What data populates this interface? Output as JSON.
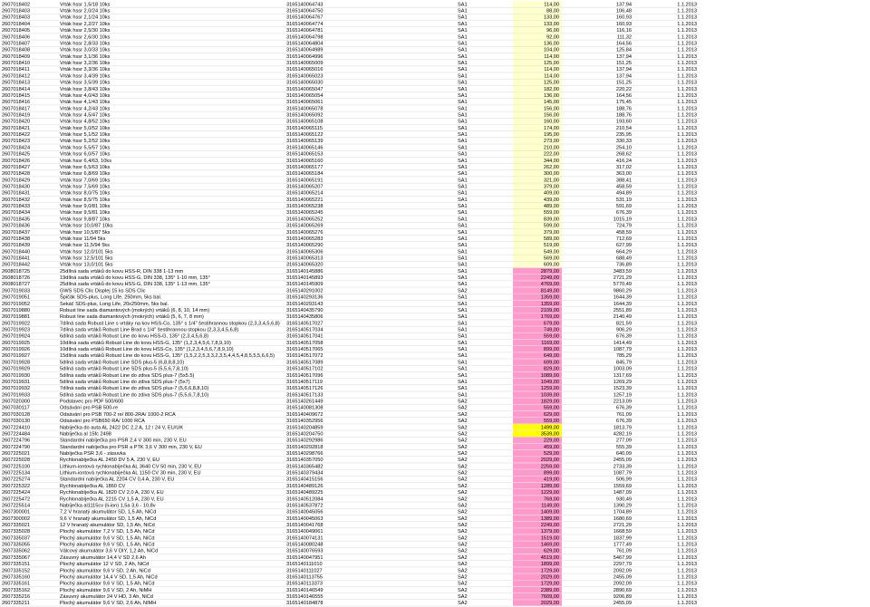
{
  "table": {
    "rows": [
      [
        "2607018402",
        "Vrták hssr 1,5/18 10ks",
        "3165140064743",
        "SA1",
        "114,00",
        "137,94",
        "1.1.2013"
      ],
      [
        "2607018403",
        "Vrták hssr 2,0/24 10ks",
        "3165140064750",
        "SA1",
        "88,00",
        "106,48",
        "1.1.2013"
      ],
      [
        "2607018403",
        "Vrták hssr 2,1/24 10ks",
        "3165140064767",
        "SA1",
        "133,00",
        "160,93",
        "1.1.2013"
      ],
      [
        "2607018404",
        "Vrták hssr 2,2/27 10ks",
        "3165140064774",
        "SA1",
        "133,00",
        "160,93",
        "1.1.2013"
      ],
      [
        "2607018405",
        "Vrták hssr 2,5/30 10ks",
        "3165140064781",
        "SA1",
        "96,00",
        "116,16",
        "1.1.2013"
      ],
      [
        "2607018406",
        "Vrták hssr 2,6/30 10ks",
        "3165140064798",
        "SA1",
        "92,00",
        "111,32",
        "1.1.2013"
      ],
      [
        "2607018407",
        "Vrták hssr 2,8/33 10ks",
        "3165140064804",
        "SA1",
        "136,00",
        "164,56",
        "1.1.2013"
      ],
      [
        "2607018408",
        "Vrták hssr 3,0/33 10ks",
        "3165140064989",
        "SA1",
        "104,00",
        "125,84",
        "1.1.2013"
      ],
      [
        "2607018409",
        "Vrták hssr 3,1/36 10ks",
        "3165140064996",
        "SA1",
        "114,00",
        "137,94",
        "1.1.2013"
      ],
      [
        "2607018410",
        "Vrták hssr 3,2/36 10ks",
        "3165140065009",
        "SA1",
        "125,00",
        "151,25",
        "1.1.2013"
      ],
      [
        "2607018411",
        "Vrták hssr 3,3/36 10ks",
        "3165140065016",
        "SA1",
        "114,00",
        "137,94",
        "1.1.2013"
      ],
      [
        "2607018412",
        "Vrták hssr 3,4/39 10ks",
        "3165140065023",
        "SA1",
        "114,00",
        "137,94",
        "1.1.2013"
      ],
      [
        "2607018413",
        "Vrták hssr 3,5/39 10ks",
        "3165140065030",
        "SA1",
        "125,00",
        "151,25",
        "1.1.2013"
      ],
      [
        "2607018414",
        "Vrták hssr 3,8/43 10ks",
        "3165140065047",
        "SA1",
        "182,00",
        "220,22",
        "1.1.2013"
      ],
      [
        "2607018415",
        "Vrták hssr 4,0/43 10ks",
        "3165140065054",
        "SA1",
        "136,00",
        "164,56",
        "1.1.2013"
      ],
      [
        "2607018416",
        "Vrták hssr 4,1/43 10ks",
        "3165140065061",
        "SA1",
        "145,00",
        "175,45",
        "1.1.2013"
      ],
      [
        "2607018417",
        "Vrták hssr 4,2/43 10ks",
        "3165140065078",
        "SA1",
        "156,00",
        "188,76",
        "1.1.2013"
      ],
      [
        "2607018419",
        "Vrták hssr 4,5/47 10ks",
        "3165140065092",
        "SA1",
        "156,00",
        "188,76",
        "1.1.2013"
      ],
      [
        "2607018420",
        "Vrták hssr 4,8/52 10ks",
        "3165140065108",
        "SA1",
        "160,00",
        "193,60",
        "1.1.2013"
      ],
      [
        "2607018421",
        "Vrták hssr 5,0/52 10ks",
        "3165140065115",
        "SA1",
        "174,00",
        "210,54",
        "1.1.2013"
      ],
      [
        "2607018422",
        "Vrták hssr 5,1/52 10ks",
        "3165140065122",
        "SA1",
        "195,00",
        "235,95",
        "1.1.2013"
      ],
      [
        "2607018423",
        "Vrták hssr 5,2/52 10ks",
        "3165140065139",
        "SA1",
        "273,00",
        "330,33",
        "1.1.2013"
      ],
      [
        "2607018424",
        "Vrták hssr 5,5/57 10ks",
        "3165140065146",
        "SA1",
        "210,00",
        "254,10",
        "1.1.2013"
      ],
      [
        "2607018425",
        "Vrták hssr 6,0/57 10ks",
        "3165140065153",
        "SA1",
        "222,00",
        "268,62",
        "1.1.2013"
      ],
      [
        "2607018426",
        "Vrták hssr 6,4/63, 10ks",
        "3165140065160",
        "SA1",
        "344,00",
        "416,24",
        "1.1.2013"
      ],
      [
        "2607018427",
        "Vrták hssr 6,5/63 10ks",
        "3165140065177",
        "SA1",
        "262,00",
        "317,02",
        "1.1.2013"
      ],
      [
        "2607018428",
        "Vrták hssr 6,8/69 10ks",
        "3165140065184",
        "SA1",
        "300,00",
        "363,00",
        "1.1.2013"
      ],
      [
        "2607018429",
        "Vrták hssr 7,0/69 10ks",
        "3165140065191",
        "SA1",
        "321,00",
        "388,41",
        "1.1.2013"
      ],
      [
        "2607018430",
        "Vrták hssr 7,5/69 10ks",
        "3165140065207",
        "SA1",
        "379,00",
        "458,59",
        "1.1.2013"
      ],
      [
        "2607018431",
        "Vrták hssr 8,0/75 10ks",
        "3165140065214",
        "SA1",
        "409,00",
        "494,89",
        "1.1.2013"
      ],
      [
        "2607018432",
        "Vrták hssr 8,5/75 10ks",
        "3165140065221",
        "SA1",
        "439,00",
        "531,19",
        "1.1.2013"
      ],
      [
        "2607018433",
        "Vrták hssr 9,0/81 10ks",
        "3165140065238",
        "SA1",
        "489,00",
        "591,69",
        "1.1.2013"
      ],
      [
        "2607018434",
        "Vrták hssr 9,5/81 10ks",
        "3165140065245",
        "SA1",
        "559,00",
        "676,39",
        "1.1.2013"
      ],
      [
        "2607018435",
        "Vrták hssr 9,8/87 10ks",
        "3165140065252",
        "SA1",
        "839,00",
        "1015,19",
        "1.1.2013"
      ],
      [
        "2607018436",
        "Vrták hssr 10,0/87 10ks",
        "3165140065269",
        "SA1",
        "599,00",
        "724,79",
        "1.1.2013"
      ],
      [
        "2607018437",
        "Vrták hssr 10,5/87 5ks",
        "3165140065276",
        "SA1",
        "379,00",
        "458,59",
        "1.1.2013"
      ],
      [
        "2607018438",
        "Vrták hssr 11/94 5ks",
        "3165140065283",
        "SA1",
        "589,00",
        "712,69",
        "1.1.2013"
      ],
      [
        "2607018439",
        "Vrták hssr 11,5/94 5ks",
        "3165140065290",
        "SA1",
        "519,00",
        "627,99",
        "1.1.2013"
      ],
      [
        "2607018440",
        "Vrták hssr 12,0/101 5ks",
        "3165140065306",
        "SA1",
        "549,00",
        "664,29",
        "1.1.2013"
      ],
      [
        "2607018441",
        "Vrták hssr 12,5/101 5ks",
        "3165140065313",
        "SA1",
        "569,00",
        "688,49",
        "1.1.2013"
      ],
      [
        "2607018442",
        "Vrták hssr 13,0/101 5ks",
        "3165140065320",
        "SA1",
        "609,00",
        "736,89",
        "1.1.2013"
      ],
      [
        "2608018725",
        "25dílná sada vrtáků do kovu HSS-R, DIN 338 1-13 mm",
        "3165140145886",
        "SA1",
        "2879,00",
        "3483,59",
        "1.1.2013"
      ],
      [
        "2608018726",
        "19dílná sada vrtáků do kovu HSS-G, DIN 338, 135° 1-10 mm, 135°",
        "3165140145893",
        "SA1",
        "2249,00",
        "2721,29",
        "1.1.2013"
      ],
      [
        "2608018727",
        "25dílná sada vrtáků do kovu HSS-G, DIN 338, 135° 1-13 mm, 135°",
        "3165140145909",
        "SA1",
        "4769,00",
        "5770,49",
        "1.1.2013"
      ],
      [
        "2607019033",
        "GWS SDS Clic Displej 15 ks SDS Clic",
        "3165140291002",
        "SA2",
        "8149,00",
        "9860,29",
        "1.1.2013"
      ],
      [
        "2607019051",
        "Špičák SDS-plus, Long Life, 250mm, 5ks bal.",
        "3165140293136",
        "SA1",
        "1359,00",
        "1644,39",
        "1.1.2013"
      ],
      [
        "2607019052",
        "Sekáč SDS-plus, Long Life, 20x250mm, 5ks bal.",
        "3165140293143",
        "SA1",
        "1359,00",
        "1644,39",
        "1.1.2013"
      ],
      [
        "2607019880",
        "Robust line sada diamantových (mokrých) vrtáků (6, 8, 10, 14 mm)",
        "3165140435790",
        "SA1",
        "2109,00",
        "2551,89",
        "1.1.2013"
      ],
      [
        "2607019881",
        "Robust line sada diamantových (mokrých) vrtáků (5, 6, 7, 8 mm)",
        "3165140435806",
        "SA1",
        "1769,00",
        "2140,49",
        "1.1.2013"
      ],
      [
        "2607019922",
        "7dílná sada Robust Line s vrtáky na kov HSS-Co, 135° s 1/4\" šestihrannou stopkou (2,3,3,4,5,6,8)",
        "3165140517027",
        "SA1",
        "679,00",
        "821,59",
        "1.1.2013"
      ],
      [
        "2607019923",
        "7dílná sada vrtáků Robust Line Brad s 1/4\" šestihrannou stopkou (2,3,3,4,5,6,8)",
        "3165140517034",
        "SA1",
        "749,00",
        "906,29",
        "1.1.2013"
      ],
      [
        "2607019924",
        "6dílná sada vrtáků Robust Line do kovu HSS-G, 135° (2,3,4,5,6,8)",
        "3165140517041",
        "SA1",
        "559,00",
        "676,39",
        "1.1.2013"
      ],
      [
        "2607019925",
        "10dílná sada vrtáků Robust Line do kovu HSS-G, 135° (1,2,3,4,5,6,7,8,9,10)",
        "3165140517058",
        "SA1",
        "1169,00",
        "1414,49",
        "1.1.2013"
      ],
      [
        "2607019926",
        "10dílná sada vrtáků Robust Line do kovu HSS-Co, 135° (1,2,3,4,5,6,7,8,9,10)",
        "3165140517065",
        "SA1",
        "899,00",
        "1087,79",
        "1.1.2013"
      ],
      [
        "2607019927",
        "15dílná sada vrtáků Robust Line do kovu HSS-G, 135° (1,5,2,2,5,3,3,2,3,5,4,4,5,4,8,5,5,5,6,6,5)",
        "3165140517072",
        "SA1",
        "649,00",
        "785,29",
        "1.1.2013"
      ],
      [
        "2607019928",
        "5dílná sada vrtáků Robust Line SDS plus-5 (6,8,8,8,10)",
        "3165140517089",
        "SA1",
        "699,00",
        "845,79",
        "1.1.2013"
      ],
      [
        "2607019929",
        "5dílná sada vrtáků Robust Line SDS plus-5 (5,5,6,7,8,10)",
        "3165140517102",
        "SA1",
        "829,00",
        "1003,09",
        "1.1.2013"
      ],
      [
        "2607019930",
        "5dílná sada vrtáků Robust Line do zdiva SDS plus-7 (5x5.5)",
        "3165140517096",
        "SA1",
        "1089,00",
        "1317,69",
        "1.1.2013"
      ],
      [
        "2607019931",
        "5dílná sada vrtáků Robust Line do zdiva SDS plus-7 (5x7)",
        "3165140517119",
        "SA1",
        "1049,00",
        "1269,29",
        "1.1.2013"
      ],
      [
        "2607019932",
        "7dílná sada vrtáků Robust Line do zdiva SDS plus-7 (5,6,6,8,8,10)",
        "3165140517126",
        "SA1",
        "1259,00",
        "1523,39",
        "1.1.2013"
      ],
      [
        "2607019933",
        "5dílná sada vrtáků Robust Line do zdiva SDS plus-7 (5,5,6,7,8,10)",
        "3165140517133",
        "SA1",
        "1039,00",
        "1257,19",
        "1.1.2013"
      ],
      [
        "2607020300",
        "Podstavec pro PDF 500/600",
        "3165140261449",
        "SA2",
        "1829,00",
        "2213,09",
        "1.1.2013"
      ],
      [
        "2607030117",
        "Odsávání pro PSB 500-re",
        "3165140081308",
        "SA2",
        "559,00",
        "676,39",
        "1.1.2013"
      ],
      [
        "2607030128",
        "Odsávání pro PSB 700-2 re/ 800-2RA/ 1000-2 RCA",
        "3165140409672",
        "SA2",
        "629,00",
        "761,09",
        "1.1.2013"
      ],
      [
        "2607030130",
        "Odsávání pro PSB650 RA/ 1000 RCA",
        "3165140352956",
        "SA2",
        "559,00",
        "676,39",
        "1.1.2013"
      ],
      [
        "2607224410",
        "Nabíječka do auta AL 2422 DC 2,2 A, 12 / 24 V, EU/UK",
        "3165140204859",
        "SA2",
        "1499,00",
        "1813,79",
        "1.1.2013"
      ],
      [
        "2607224484",
        "Nabíječka al 15fc 2498",
        "3165140204750",
        "SA2",
        "3539,00",
        "4282,19",
        "1.1.2013"
      ],
      [
        "2607224796",
        "Standardní nabíječka pro PSR 2,4 V 300 min, 230 V, EU",
        "3165140292986",
        "SA2",
        "229,00",
        "277,09",
        "1.1.2013"
      ],
      [
        "2607224790",
        "Standardní nabíječka pro PSR a PTK 3,6 V 300 min, 230 V, EU",
        "3165140292818",
        "SA2",
        "459,00",
        "555,39",
        "1.1.2013"
      ],
      [
        "2607225021",
        "Nabíječka PSR 3,6 - zásuvka",
        "3165140298766",
        "SA2",
        "529,00",
        "640,09",
        "1.1.2013"
      ],
      [
        "2607225028",
        "Rychlonabíječka AL 2450 DV 5 A, 230 V, EU",
        "3165140357050",
        "SA2",
        "2029,00",
        "2455,09",
        "1.1.2013"
      ],
      [
        "2607225100",
        "Lithium-iontová rychlonabíječka AL 3640 CV 50 min, 230 V, EU",
        "3165140365482",
        "SA2",
        "2259,00",
        "2733,39",
        "1.1.2013"
      ],
      [
        "2607225134",
        "Lithium-iontová rychlonabíječka AL 1150 CV 30 min, 230 V, EU",
        "3165140379434",
        "SA2",
        "899,00",
        "1087,79",
        "1.1.2013"
      ],
      [
        "2607225274",
        "Standardní nabíječka AL 2204 CV 0,4 A, 230 V, EU",
        "3165140415156",
        "SA2",
        "419,00",
        "506,99",
        "1.1.2013"
      ],
      [
        "2607225322",
        "Rychlonabíječka AL 1860 CV",
        "3165140489126",
        "SA2",
        "1289,00",
        "1559,69",
        "1.1.2013"
      ],
      [
        "2607225424",
        "Rychlonabíječka AL 1820 CV 2,0 A, 230 V, EU",
        "3165140489225",
        "SA2",
        "1229,00",
        "1487,09",
        "1.1.2013"
      ],
      [
        "2607225472",
        "Rychlonabíječka AL 2215 CV 1,5 A, 230 V, EU",
        "3165140512084",
        "SA2",
        "769,00",
        "930,49",
        "1.1.2013"
      ],
      [
        "2607225514",
        "Nabíječka al1115cv (li-ion) 1,5a 3,6 - 10,8v",
        "3165140537872",
        "SA2",
        "1149,00",
        "1390,29",
        "1.1.2013"
      ],
      [
        "2607300001",
        "7,2 V hranatý akumulátor SD, 1,5 Ah, NiCd",
        "3165140045056",
        "SA2",
        "1409,00",
        "1704,89",
        "1.1.2013"
      ],
      [
        "2607300002",
        "9,6 V hranatý akumulátor SD, 1,5 Ah, NiCd",
        "3165140045063",
        "SA2",
        "1389,00",
        "1680,69",
        "1.1.2013"
      ],
      [
        "2607335021",
        "12 V hranatý akumulátor SD, 1,5 Ah, NiCd",
        "3165140041768",
        "SA2",
        "2249,00",
        "2721,29",
        "1.1.2013"
      ],
      [
        "2607335028",
        "Plochý akumulátor 7,2 V SD, 1,5 Ah, NiCd",
        "3165140049061",
        "SA2",
        "1379,00",
        "1668,59",
        "1.1.2013"
      ],
      [
        "2607335037",
        "Plochý akumulátor 9,6 V SD, 1,5 Ah, NiCd",
        "3165140074131",
        "SA2",
        "1519,00",
        "1837,99",
        "1.1.2013"
      ],
      [
        "2607335055",
        "Plochý akumulátor 9,6 V SD, 1,5 Ah, NiCd",
        "3165140080248",
        "SA2",
        "1469,00",
        "1777,49",
        "1.1.2013"
      ],
      [
        "2607335062",
        "Válcový akumulátor 3,6 V DIY, 1,2 Ah, NiCd",
        "3165140076593",
        "SA2",
        "629,00",
        "761,09",
        "1.1.2013"
      ],
      [
        "2607335067",
        "Zásuvný akumulátor 14,4 V SD 2,6 Ah",
        "3165140047951",
        "SA2",
        "4519,00",
        "5467,99",
        "1.1.2013"
      ],
      [
        "2607335151",
        "Plochý akumulátor 12 V SD, 2 Ah, NiCd",
        "3165140111010",
        "SA2",
        "1899,00",
        "2297,79",
        "1.1.2013"
      ],
      [
        "2607335152",
        "Plochý akumulátor 9,6 V SD, 2 Ah, NiCd",
        "3165140111027",
        "SA2",
        "1729,00",
        "2092,09",
        "1.1.2013"
      ],
      [
        "2607335160",
        "Plochý akumulátor 14,4 V SD, 1,5 Ah, NiCd",
        "3165140113755",
        "SA2",
        "2029,00",
        "2455,09",
        "1.1.2013"
      ],
      [
        "2607335161",
        "Plochý akumulátor 9,6 V SD, 1,5 Ah, NiCd",
        "3165140113373",
        "SA2",
        "1729,00",
        "2092,09",
        "1.1.2013"
      ],
      [
        "2607335162",
        "Plochý akumulátor 9,6 V SD, 2 Ah, NiMH",
        "3165140146549",
        "SA2",
        "2389,00",
        "2890,69",
        "1.1.2013"
      ],
      [
        "2607335216",
        "Zásuvný akumulátor 24 V HD, 3 Ah, NiCd",
        "3165140146555",
        "SA2",
        "7609,00",
        "9206,89",
        "1.1.2013"
      ],
      [
        "2607335211",
        "Plochý akumulátor 9,6 V SD, 2,6 Ah, NIMH",
        "3165140184878",
        "SA2",
        "2029,00",
        "2455,09",
        "1.1.2013"
      ]
    ],
    "price_highlight": [
      "#ffffcc",
      "#ffffcc",
      "#ffffcc",
      "#ffffcc",
      "#ffffcc",
      "#ffffcc",
      "#ffffcc",
      "#ffffcc",
      "#ffffcc",
      "#ffffcc",
      "#ffffcc",
      "#ffffcc",
      "#ffffcc",
      "#ffffcc",
      "#ffffcc",
      "#ffffcc",
      "#ffffcc",
      "#ffffcc",
      "#ffffcc",
      "#ffffcc",
      "#ffffcc",
      "#ffffcc",
      "#ffffcc",
      "#ffffcc",
      "#ffffcc",
      "#ffffcc",
      "#ffffcc",
      "#ffffcc",
      "#ffffcc",
      "#ffffcc",
      "#ffffcc",
      "#ffffcc",
      "#ffffcc",
      "#ffffcc",
      "#ffffcc",
      "#ffffcc",
      "#ffffcc",
      "#ffffcc",
      "#ffffcc",
      "#ffffcc",
      "#ffffcc",
      "#ff99cc",
      "#ff99cc",
      "#ff99cc",
      "#ff99cc",
      "#ff99cc",
      "#ff99cc",
      "#ff99cc",
      "#ff99cc",
      "#ff99cc",
      "#ff99cc",
      "#ff99cc",
      "#ff99cc",
      "#ff99cc",
      "#ff99cc",
      "#ff99cc",
      "#ff99cc",
      "#ff99cc",
      "#ff99cc",
      "#ff99cc",
      "#ff99cc",
      "#ff99cc",
      "#ff99cc",
      "#ff99cc",
      "#ff99cc",
      "#ffff00",
      "#ffff00",
      "#ff99cc",
      "#ff99cc",
      "#ff99cc",
      "#ff99cc",
      "#ff99cc",
      "#ff99cc",
      "#ff99cc",
      "#ff99cc",
      "#ff99cc",
      "#ff99cc",
      "#ff99cc",
      "#ff99cc",
      "#ff99cc",
      "#ff99cc",
      "#ff99cc",
      "#ff99cc",
      "#ff99cc",
      "#ff99cc",
      "#ff99cc",
      "#ff99cc",
      "#ff99cc",
      "#ff99cc",
      "#ff99cc",
      "#ff99cc",
      "#ff99cc",
      "#ff99cc",
      "#ff99cc"
    ]
  }
}
